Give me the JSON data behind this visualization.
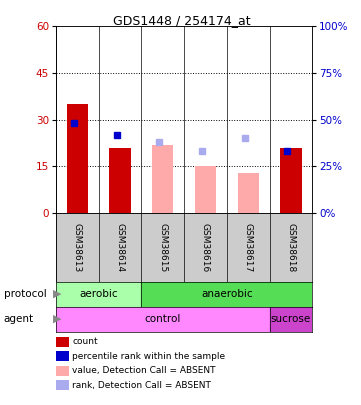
{
  "title": "GDS1448 / 254174_at",
  "samples": [
    "GSM38613",
    "GSM38614",
    "GSM38615",
    "GSM38616",
    "GSM38617",
    "GSM38618"
  ],
  "count_values": [
    35,
    21,
    null,
    null,
    null,
    21
  ],
  "rank_values": [
    29,
    25,
    null,
    null,
    null,
    20
  ],
  "absent_value_values": [
    null,
    null,
    22,
    15,
    13,
    null
  ],
  "absent_rank_values": [
    null,
    null,
    23,
    20,
    24,
    null
  ],
  "left_ylim": [
    0,
    60
  ],
  "left_yticks": [
    0,
    15,
    30,
    45,
    60
  ],
  "right_ylim": [
    0,
    100
  ],
  "right_yticks": [
    0,
    25,
    50,
    75,
    100
  ],
  "count_color": "#cc0000",
  "rank_color": "#0000cc",
  "absent_value_color": "#ffaaaa",
  "absent_rank_color": "#aaaaee",
  "label_color_left": "#cc0000",
  "label_color_right": "#0000cc",
  "aerobic_color": "#aaffaa",
  "anaerobic_color": "#55dd55",
  "control_color": "#ff88ff",
  "sucrose_color": "#cc44cc",
  "sample_bg_color": "#cccccc",
  "legend_items": [
    {
      "color": "#cc0000",
      "label": "count"
    },
    {
      "color": "#0000cc",
      "label": "percentile rank within the sample"
    },
    {
      "color": "#ffaaaa",
      "label": "value, Detection Call = ABSENT"
    },
    {
      "color": "#aaaaee",
      "label": "rank, Detection Call = ABSENT"
    }
  ]
}
